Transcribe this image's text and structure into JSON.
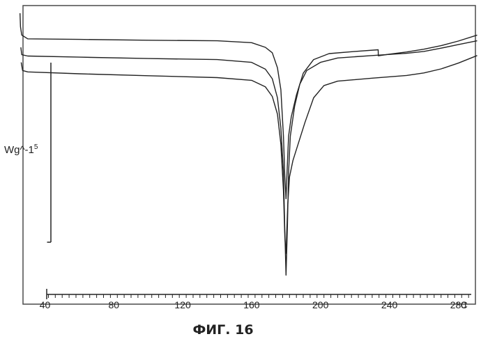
{
  "chart_data": {
    "type": "line",
    "title": "",
    "ylabel": "Wg^-1",
    "ylabel_superscript": "5",
    "xlabel_unit": "°C",
    "xlim": [
      24,
      292
    ],
    "ylim": [
      0,
      100
    ],
    "grid": false,
    "x_ticks": [
      40,
      80,
      120,
      160,
      200,
      240,
      280
    ],
    "x_tick_labels": [
      "40",
      "80",
      "120",
      "160",
      "200",
      "240",
      "280"
    ],
    "series": [
      {
        "color": "#222222",
        "points": [
          [
            25.5,
            100
          ],
          [
            25.8,
            95
          ],
          [
            26.5,
            92
          ],
          [
            30,
            90.6
          ],
          [
            60,
            90.4
          ],
          [
            100,
            90.1
          ],
          [
            140,
            89.9
          ],
          [
            160,
            89.2
          ],
          [
            168,
            87.5
          ],
          [
            172,
            85.5
          ],
          [
            175,
            80
          ],
          [
            177,
            72
          ],
          [
            178.5,
            55
          ],
          [
            179.3,
            40
          ],
          [
            180,
            32
          ],
          [
            180.6,
            42
          ],
          [
            181.5,
            55
          ],
          [
            183,
            62
          ],
          [
            186,
            70
          ],
          [
            190,
            78
          ],
          [
            196,
            83
          ],
          [
            205,
            85.2
          ],
          [
            220,
            86
          ],
          [
            233.5,
            86.6
          ],
          [
            233.6,
            84.4
          ],
          [
            240,
            85
          ],
          [
            250,
            85.8
          ],
          [
            260,
            86.8
          ],
          [
            270,
            88.1
          ],
          [
            280,
            89.8
          ],
          [
            291,
            92
          ]
        ]
      },
      {
        "color": "#222222",
        "points": [
          [
            26,
            87.5
          ],
          [
            26.5,
            84.8
          ],
          [
            30,
            84.3
          ],
          [
            60,
            83.9
          ],
          [
            100,
            83.4
          ],
          [
            140,
            83
          ],
          [
            160,
            82
          ],
          [
            168,
            79.5
          ],
          [
            172,
            76
          ],
          [
            175,
            69
          ],
          [
            177,
            58
          ],
          [
            178.5,
            42
          ],
          [
            179.3,
            20
          ],
          [
            180,
            4
          ],
          [
            180.8,
            22
          ],
          [
            181.5,
            42
          ],
          [
            182.5,
            55
          ],
          [
            185,
            66
          ],
          [
            188,
            74
          ],
          [
            192,
            79
          ],
          [
            200,
            82
          ],
          [
            210,
            83.6
          ],
          [
            230,
            84.5
          ],
          [
            250,
            85.3
          ],
          [
            260,
            86
          ],
          [
            270,
            87.2
          ],
          [
            280,
            88.5
          ],
          [
            291,
            89.9
          ]
        ]
      },
      {
        "color": "#222222",
        "points": [
          [
            26.2,
            82
          ],
          [
            27,
            79
          ],
          [
            30,
            78.5
          ],
          [
            60,
            77.8
          ],
          [
            100,
            77.1
          ],
          [
            140,
            76.4
          ],
          [
            160,
            75.4
          ],
          [
            168,
            73
          ],
          [
            172,
            69.5
          ],
          [
            175,
            63
          ],
          [
            177,
            52
          ],
          [
            178.5,
            35
          ],
          [
            179.3,
            18
          ],
          [
            180,
            12
          ],
          [
            181,
            30
          ],
          [
            182,
            40
          ],
          [
            184,
            46
          ],
          [
            187,
            52
          ],
          [
            191,
            60
          ],
          [
            196,
            69
          ],
          [
            202,
            73.5
          ],
          [
            210,
            75.1
          ],
          [
            230,
            76.2
          ],
          [
            250,
            77.2
          ],
          [
            260,
            78.1
          ],
          [
            270,
            79.6
          ],
          [
            280,
            81.7
          ],
          [
            291,
            84.5
          ]
        ]
      }
    ]
  },
  "caption": "ФИГ. 16"
}
